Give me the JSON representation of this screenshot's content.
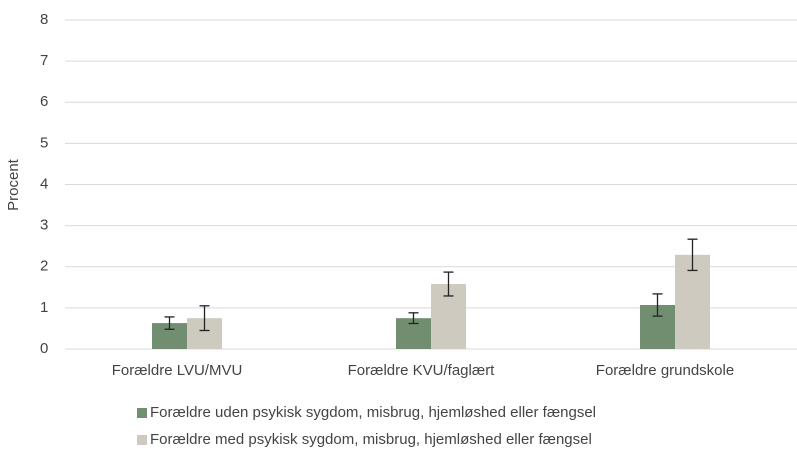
{
  "chart_data": {
    "type": "bar",
    "y_label": "Procent",
    "categories": [
      "Forældre LVU/MVU",
      "Forældre KVU/faglært",
      "Forældre grundskole"
    ],
    "series": [
      {
        "name": "Forældre uden psykisk sygdom, misbrug, hjemløshed eller fængsel",
        "color": "#718f70",
        "values": [
          0.63,
          0.75,
          1.07
        ],
        "errors": [
          0.15,
          0.13,
          0.27
        ]
      },
      {
        "name": "Forældre med psykisk sygdom, misbrug, hjemløshed eller fængsel",
        "color": "#cfcabf",
        "values": [
          0.75,
          1.58,
          2.29
        ],
        "errors": [
          0.3,
          0.29,
          0.38
        ]
      }
    ],
    "ylim": [
      0,
      8
    ],
    "yticks": [
      0,
      1,
      2,
      3,
      4,
      5,
      6,
      7,
      8
    ],
    "grid": true
  }
}
